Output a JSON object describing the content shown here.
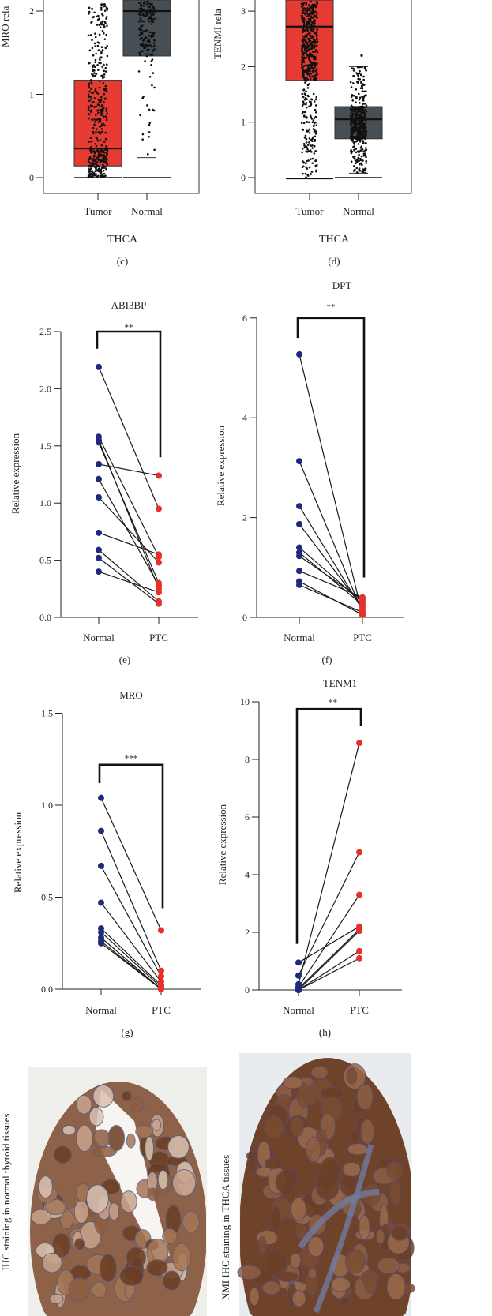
{
  "colors": {
    "tumor": "#e53b32",
    "normal_box": "#474f55",
    "normal_point": "#1f2a7a",
    "ptc_point": "#e8302a",
    "line": "#1a1a1a"
  },
  "chart_data": [
    {
      "panel": "(c)",
      "type": "box",
      "ylabel": "MRO rela",
      "xlabel": "THCA",
      "categories": [
        "Tumor",
        "Normal"
      ],
      "yticks": [
        "0",
        "1",
        "2"
      ],
      "ylim": [
        -0.2,
        2.15
      ],
      "boxes": [
        {
          "name": "Tumor",
          "whisker_low": 0,
          "q1": 0.14,
          "median": 0.35,
          "q3": 1.17,
          "max_point": 2.15
        },
        {
          "name": "Normal",
          "whisker_low": 0.24,
          "q1": 1.46,
          "median": 2.0,
          "q3": 2.15,
          "max_point": 2.15
        }
      ]
    },
    {
      "panel": "(d)",
      "type": "box",
      "ylabel": "TENMI rela",
      "xlabel": "THCA",
      "categories": [
        "Tumor",
        "Normal"
      ],
      "yticks": [
        "0",
        "1",
        "2",
        "3"
      ],
      "ylim": [
        -0.3,
        3.2
      ],
      "boxes": [
        {
          "name": "Tumor",
          "whisker_low": -0.02,
          "q1": 1.75,
          "median": 2.72,
          "q3": 3.2,
          "max_point": 3.2
        },
        {
          "name": "Normal",
          "whisker_low": 0.08,
          "q1": 0.7,
          "median": 1.05,
          "q3": 1.28,
          "whisker_high": 2.0,
          "outliers": [
            2.2
          ]
        }
      ]
    },
    {
      "panel": "(e)",
      "type": "paired",
      "title": "ABI3BP",
      "significance": "**",
      "ylabel": "Relative expression",
      "categories": [
        "Normal",
        "PTC"
      ],
      "yticks": [
        "0.0",
        "0.5",
        "1.0",
        "1.5",
        "2.0",
        "2.5"
      ],
      "ylim": [
        0,
        2.5
      ],
      "bracket": {
        "top": 2.5,
        "left_end": 2.35,
        "right_end": 1.4
      },
      "pairs": [
        [
          2.19,
          0.95
        ],
        [
          1.58,
          0.53
        ],
        [
          1.55,
          0.25
        ],
        [
          1.53,
          0.3
        ],
        [
          1.34,
          1.24
        ],
        [
          1.21,
          0.28
        ],
        [
          1.05,
          0.48
        ],
        [
          0.74,
          0.55
        ],
        [
          0.59,
          0.14
        ],
        [
          0.52,
          0.12
        ],
        [
          0.4,
          0.22
        ]
      ]
    },
    {
      "panel": "(f)",
      "type": "paired",
      "title": "DPT",
      "significance": "**",
      "ylabel": "Relative expression",
      "categories": [
        "Normal",
        "PTC"
      ],
      "yticks": [
        "0",
        "2",
        "4",
        "6"
      ],
      "ylim": [
        0,
        6
      ],
      "bracket": {
        "top": 6.0,
        "left_end": 5.6,
        "right_end": 0.8
      },
      "pairs": [
        [
          5.27,
          0.05
        ],
        [
          3.13,
          0.1
        ],
        [
          2.23,
          0.15
        ],
        [
          1.87,
          0.2
        ],
        [
          1.4,
          0.3
        ],
        [
          1.3,
          0.25
        ],
        [
          1.23,
          0.35
        ],
        [
          0.93,
          0.4
        ],
        [
          0.72,
          0.05
        ],
        [
          0.65,
          0.1
        ]
      ]
    },
    {
      "panel": "(g)",
      "type": "paired",
      "title": "MRO",
      "significance": "***",
      "ylabel": "Relative expression",
      "categories": [
        "Normal",
        "PTC"
      ],
      "yticks": [
        "0.0",
        "0.5",
        "1.0",
        "1.5"
      ],
      "ylim": [
        0,
        1.5
      ],
      "bracket": {
        "top": 1.22,
        "left_end": 1.12,
        "right_end": 0.44
      },
      "pairs": [
        [
          1.04,
          0.32
        ],
        [
          0.86,
          0.1
        ],
        [
          0.67,
          0.07
        ],
        [
          0.47,
          0.04
        ],
        [
          0.33,
          0.02
        ],
        [
          0.31,
          0.01
        ],
        [
          0.28,
          0.0
        ],
        [
          0.26,
          0.0
        ],
        [
          0.25,
          0.0
        ]
      ]
    },
    {
      "panel": "(h)",
      "type": "paired",
      "title": "TENM1",
      "significance": "**",
      "ylabel": "Relative expression",
      "categories": [
        "Normal",
        "PTC"
      ],
      "yticks": [
        "0",
        "2",
        "4",
        "6",
        "8",
        "10"
      ],
      "ylim": [
        0,
        10
      ],
      "bracket": {
        "top": 9.75,
        "left_end": 1.6,
        "right_end": 9.15
      },
      "pairs": [
        [
          0.95,
          2.2
        ],
        [
          0.5,
          4.78
        ],
        [
          0.2,
          8.57
        ],
        [
          0.1,
          3.3
        ],
        [
          0.05,
          2.1
        ],
        [
          0.0,
          2.05
        ],
        [
          0.0,
          1.35
        ],
        [
          0.0,
          1.1
        ]
      ]
    }
  ],
  "ihc": {
    "left_label": "IHC staining in normal thyroid tissues",
    "right_label": "NMI IHC staining in THCA tissues"
  }
}
